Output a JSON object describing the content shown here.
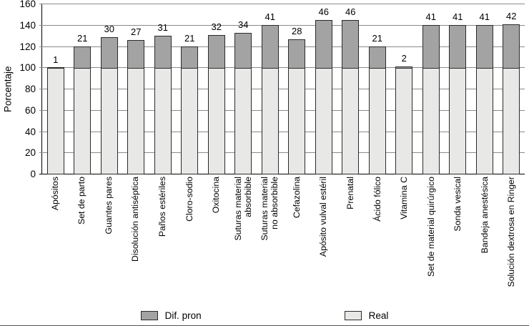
{
  "chart_data": {
    "type": "bar",
    "stacked": true,
    "title": "",
    "xlabel": "",
    "ylabel": "Porcentaje",
    "ylim": [
      0,
      160
    ],
    "yticks": [
      0,
      20,
      40,
      60,
      80,
      100,
      120,
      140,
      160
    ],
    "grid": true,
    "legend_position": "bottom",
    "categories": [
      "Apósitos",
      "Set de parto",
      "Guantes pares",
      "Disolución antiséptica",
      "Paños estériles",
      "Cloro-sodio",
      "Oxitocina",
      "Suturas material\nabsorbible",
      "Suturas material\nno absorbible",
      "Cefazolina",
      "Apósito vulval estéril",
      "Prenatal",
      "Ácido fólico",
      "Vitamina C",
      "Set de material quirúrgico",
      "Sonda vesical",
      "Bandeja anestésica",
      "Solución dextrosa en Ringer"
    ],
    "series": [
      {
        "name": "Real",
        "color": "#e8e8e6",
        "values": [
          100,
          100,
          100,
          100,
          100,
          100,
          100,
          100,
          100,
          100,
          100,
          100,
          100,
          100,
          100,
          100,
          100,
          100
        ]
      },
      {
        "name": "Dif. pron",
        "color": "#a3a3a3",
        "values": [
          1,
          21,
          30,
          27,
          31,
          21,
          32,
          34,
          41,
          28,
          46,
          46,
          21,
          2,
          41,
          41,
          41,
          42
        ]
      }
    ],
    "bar_value_labels": [
      1,
      21,
      30,
      27,
      31,
      21,
      32,
      34,
      41,
      28,
      46,
      46,
      21,
      2,
      41,
      41,
      41,
      42
    ],
    "legend": [
      {
        "label": "Dif. pron",
        "color": "#a3a3a3"
      },
      {
        "label": "Real",
        "color": "#e8e8e6"
      }
    ]
  }
}
